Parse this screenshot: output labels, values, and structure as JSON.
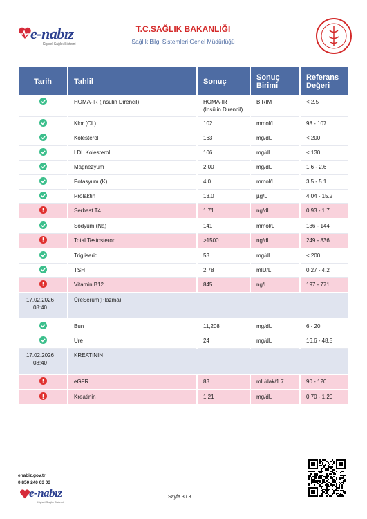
{
  "header": {
    "logo": "e-nabız",
    "logo_tagline": "Kişisel Sağlık Sistemi",
    "title": "T.C.SAĞLIK BAKANLIĞI",
    "subtitle": "Sağlık Bilgi Sistemleri Genel Müdürlüğü"
  },
  "table": {
    "columns": [
      "Tarih",
      "Tahlil",
      "Sonuç",
      "Sonuç Birimi",
      "Referans Değeri"
    ],
    "rows": [
      {
        "status": "ok",
        "test": "HOMA-IR (İnsülin Direncil)",
        "result": "HOMA-IR (İnsülin Direncil)",
        "unit": "BIRIM",
        "reference": "< 2.5"
      },
      {
        "status": "ok",
        "test": "Klor (CL)",
        "result": "102",
        "unit": "mmol/L",
        "reference": "98 - 107"
      },
      {
        "status": "ok",
        "test": "Kolesterol",
        "result": "163",
        "unit": "mg/dL",
        "reference": "< 200"
      },
      {
        "status": "ok",
        "test": "LDL Kolesterol",
        "result": "106",
        "unit": "mg/dL",
        "reference": "< 130"
      },
      {
        "status": "ok",
        "test": "Magnezyum",
        "result": "2.00",
        "unit": "mg/dL",
        "reference": "1.6 - 2.6"
      },
      {
        "status": "ok",
        "test": "Potasyum (K)",
        "result": "4.0",
        "unit": "mmol/L",
        "reference": "3.5 - 5.1"
      },
      {
        "status": "ok",
        "test": "Prolaktin",
        "result": "13.0",
        "unit": "µg/L",
        "reference": "4.04 - 15.2"
      },
      {
        "status": "alert",
        "test": "Serbest T4",
        "result": "1.71",
        "unit": "ng/dL",
        "reference": "0.93 - 1.7"
      },
      {
        "status": "ok",
        "test": "Sodyum (Na)",
        "result": "141",
        "unit": "mmol/L",
        "reference": "136 - 144"
      },
      {
        "status": "alert",
        "test": "Total Testosteron",
        "result": ">1500",
        "unit": "ng/dl",
        "reference": "249 - 836"
      },
      {
        "status": "ok",
        "test": "Trigliserid",
        "result": "53",
        "unit": "mg/dL",
        "reference": "< 200"
      },
      {
        "status": "ok",
        "test": "TSH",
        "result": "2.78",
        "unit": "mIU/L",
        "reference": "0.27 - 4.2"
      },
      {
        "status": "alert",
        "test": "Vitamin B12",
        "result": "845",
        "unit": "ng/L",
        "reference": "197 - 771"
      },
      {
        "date": "17.02.2026 08:40",
        "group": "ÜreSerum(Plazma)"
      },
      {
        "status": "ok",
        "test": "Bun",
        "result": "11,208",
        "unit": "mg/dL",
        "reference": "6 - 20"
      },
      {
        "status": "ok",
        "test": "Üre",
        "result": "24",
        "unit": "mg/dL",
        "reference": "16.6 - 48.5"
      },
      {
        "date": "17.02.2026 08:40",
        "group": "KREATININ"
      },
      {
        "status": "alert",
        "test": "eGFR",
        "result": "83",
        "unit": "mL/dak/1.7",
        "reference": "90 - 120"
      },
      {
        "status": "alert",
        "test": "Kreatinin",
        "result": "1.21",
        "unit": "mg/dL",
        "reference": "0.70 - 1.20"
      }
    ]
  },
  "footer": {
    "website": "enabiz.gov.tr",
    "phone": "0 850 240 03 03",
    "page": "Sayfa 3 / 3"
  }
}
